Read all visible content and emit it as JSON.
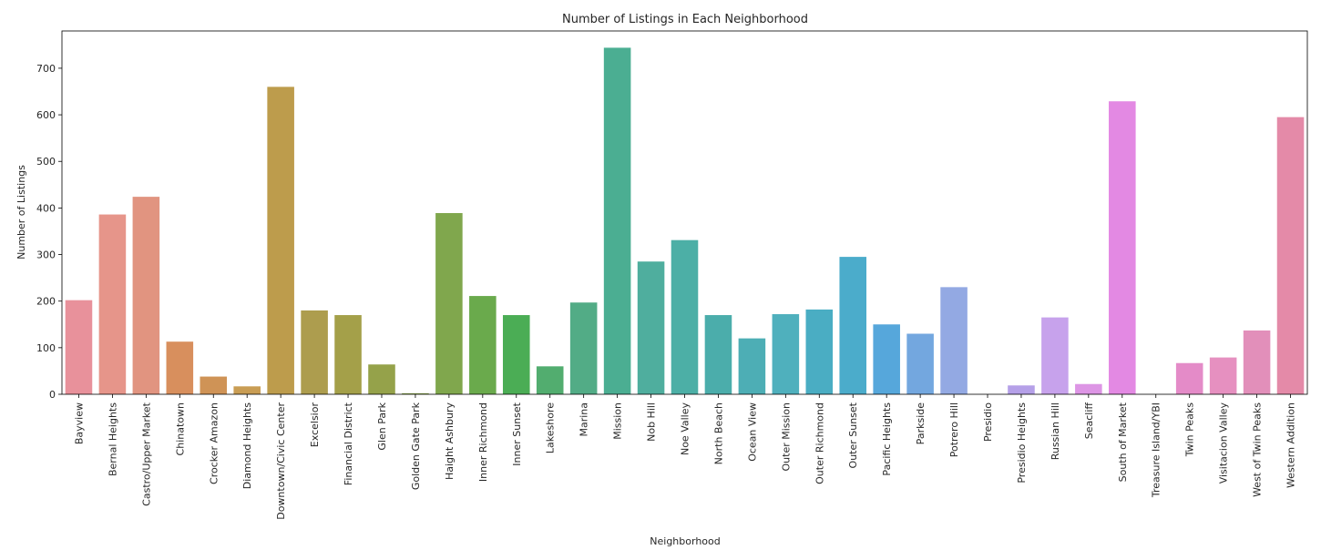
{
  "chart_data": {
    "type": "bar",
    "title": "Number of Listings in Each Neighborhood",
    "xlabel": "Neighborhood",
    "ylabel": "Number of Listings",
    "ylim": [
      0,
      780
    ],
    "yticks": [
      0,
      100,
      200,
      300,
      400,
      500,
      600,
      700
    ],
    "grid": false,
    "categories": [
      "Bayview",
      "Bernal Heights",
      "Castro/Upper Market",
      "Chinatown",
      "Crocker Amazon",
      "Diamond Heights",
      "Downtown/Civic Center",
      "Excelsior",
      "Financial District",
      "Glen Park",
      "Golden Gate Park",
      "Haight Ashbury",
      "Inner Richmond",
      "Inner Sunset",
      "Lakeshore",
      "Marina",
      "Mission",
      "Nob Hill",
      "Noe Valley",
      "North Beach",
      "Ocean View",
      "Outer Mission",
      "Outer Richmond",
      "Outer Sunset",
      "Pacific Heights",
      "Parkside",
      "Potrero Hill",
      "Presidio",
      "Presidio Heights",
      "Russian Hill",
      "Seacliff",
      "South of Market",
      "Treasure Island/YBI",
      "Twin Peaks",
      "Visitacion Valley",
      "West of Twin Peaks",
      "Western Addition"
    ],
    "values": [
      202,
      386,
      424,
      113,
      38,
      17,
      660,
      180,
      170,
      64,
      2,
      389,
      211,
      170,
      60,
      197,
      744,
      285,
      331,
      170,
      120,
      172,
      182,
      295,
      150,
      130,
      230,
      0,
      19,
      165,
      22,
      629,
      0,
      67,
      79,
      137,
      595
    ],
    "colors": [
      "#e8919b",
      "#e6958a",
      "#e19480",
      "#d88f5d",
      "#cf9356",
      "#c99d54",
      "#bd9c4c",
      "#ad9d4e",
      "#a4a049",
      "#95a24a",
      "#86a640",
      "#80a74d",
      "#6aaa4c",
      "#4bad55",
      "#52ad6f",
      "#52ac86",
      "#4bae92",
      "#4fae9e",
      "#4cafa6",
      "#4badab",
      "#4daeb5",
      "#4fb0bd",
      "#4aadc3",
      "#4baccb",
      "#56a7db",
      "#73a7df",
      "#93a9e3",
      "#9f9de8",
      "#b5a0e8",
      "#c7a2ec",
      "#dd95e5",
      "#e389e3",
      "#e589d2",
      "#e48bc8",
      "#e690c0",
      "#e28fba",
      "#e48aa8"
    ]
  }
}
